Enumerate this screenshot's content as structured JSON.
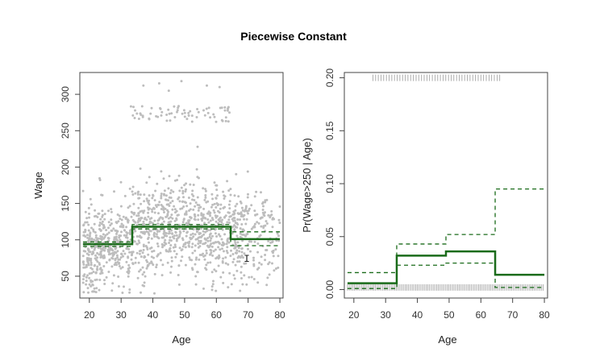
{
  "title": "Piecewise Constant",
  "chart_data": [
    {
      "type": "scatter",
      "xlabel": "Age",
      "ylabel": "Wage",
      "xlim": [
        17,
        81
      ],
      "ylim": [
        20,
        330
      ],
      "xticks": [
        20,
        30,
        40,
        50,
        60,
        70,
        80
      ],
      "yticks": [
        50,
        100,
        150,
        200,
        250,
        300
      ],
      "step_breaks": [
        18,
        33.5,
        49,
        64.5,
        80
      ],
      "fit": [
        94,
        118,
        118,
        101
      ],
      "band_lower": [
        91,
        115,
        115,
        92
      ],
      "band_upper": [
        97,
        121,
        121,
        111
      ],
      "cursor_glyph": "I"
    },
    {
      "type": "line",
      "xlabel": "Age",
      "ylabel": "Pr(Wage>250 | Age)",
      "xlim": [
        17,
        81
      ],
      "ylim": [
        -0.008,
        0.205
      ],
      "xticks": [
        20,
        30,
        40,
        50,
        60,
        70,
        80
      ],
      "yticks": [
        "0.00",
        "0.05",
        "0.10",
        "0.15",
        "0.20"
      ],
      "step_breaks": [
        18,
        33.5,
        49,
        64.5,
        80
      ],
      "fit": [
        0.006,
        0.032,
        0.036,
        0.014
      ],
      "band_lower": [
        0.001,
        0.023,
        0.025,
        0.002
      ],
      "band_upper": [
        0.016,
        0.043,
        0.052,
        0.095
      ],
      "rug_top_y": 0.2,
      "rug_bottom_y": 0.002
    }
  ],
  "colors": {
    "fit": "#1a6b1a",
    "points": "#bdbdbd",
    "rug": "#9a9a9a"
  }
}
